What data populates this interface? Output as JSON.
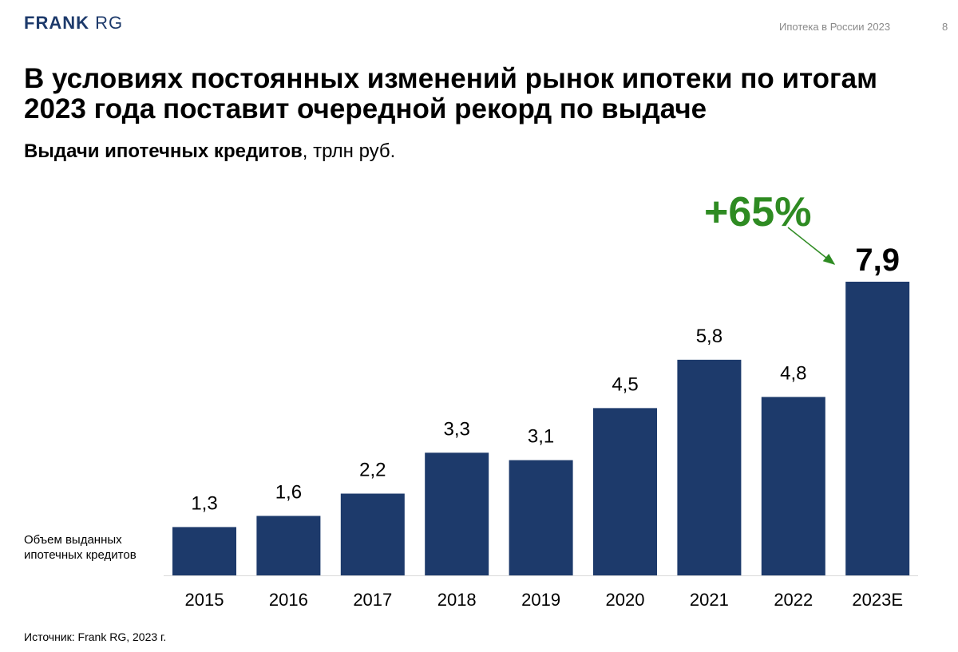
{
  "header": {
    "logo_bold": "FRANK",
    "logo_light": " RG",
    "doc_title": "Ипотека в России 2023",
    "page_number": "8"
  },
  "headline": "В условиях постоянных изменений рынок ипотеки по итогам 2023 года поставит очередной рекорд по выдаче",
  "subtitle": {
    "main": "Выдачи ипотечных кредитов",
    "units": ", трлн руб."
  },
  "axis_note": "Объем выданных ипотечных кредитов",
  "source": "Источник: Frank RG, 2023 г.",
  "annotation": {
    "growth": "+65%",
    "color": "#2e8b22"
  },
  "chart_data": {
    "type": "bar",
    "categories": [
      "2015",
      "2016",
      "2017",
      "2018",
      "2019",
      "2020",
      "2021",
      "2022",
      "2023E"
    ],
    "values": [
      1.3,
      1.6,
      2.2,
      3.3,
      3.1,
      4.5,
      5.8,
      4.8,
      7.9
    ],
    "value_labels": [
      "1,3",
      "1,6",
      "2,2",
      "3,3",
      "3,1",
      "4,5",
      "5,8",
      "4,8",
      "7,9"
    ],
    "highlight_index": 8,
    "bar_color": "#1d3a6b",
    "ylim": [
      0,
      7.9
    ],
    "grid": false,
    "legend": "none"
  }
}
